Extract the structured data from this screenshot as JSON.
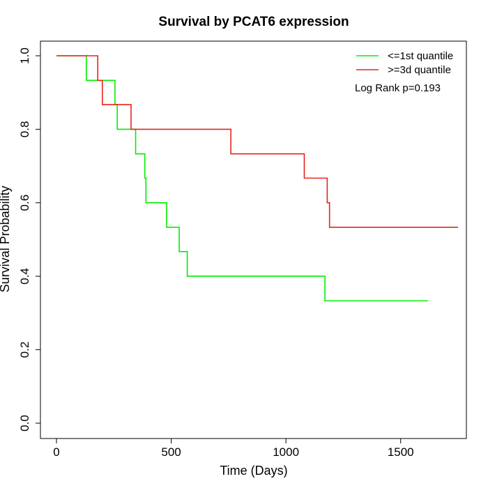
{
  "chart_data": {
    "type": "line",
    "title": "Survival by PCAT6 expression",
    "xlabel": "Time (Days)",
    "ylabel": "Survival Probability",
    "xlim": [
      0,
      1800
    ],
    "ylim": [
      0,
      1.0
    ],
    "x_ticks": [
      0,
      500,
      1000,
      1500
    ],
    "x_tick_labels": [
      "0",
      "500",
      "1000",
      "1500"
    ],
    "y_ticks": [
      0.0,
      0.2,
      0.4,
      0.6,
      0.8,
      1.0
    ],
    "y_tick_labels": [
      "0.0",
      "0.2",
      "0.4",
      "0.6",
      "0.8",
      "1.0"
    ],
    "grid": false,
    "legend_position": "top-right",
    "series": [
      {
        "name": "<=1st quantile",
        "color": "#00ee00",
        "step": true,
        "x": [
          0,
          130,
          255,
          265,
          345,
          385,
          390,
          480,
          535,
          570,
          1170,
          1620
        ],
        "y": [
          1.0,
          0.933,
          0.867,
          0.8,
          0.733,
          0.667,
          0.6,
          0.533,
          0.467,
          0.4,
          0.333,
          0.333
        ]
      },
      {
        "name": ">=3d quantile",
        "color": "#e8231c",
        "step": true,
        "x": [
          0,
          180,
          200,
          325,
          760,
          1080,
          1180,
          1190,
          1750
        ],
        "y": [
          1.0,
          0.933,
          0.867,
          0.8,
          0.733,
          0.667,
          0.6,
          0.533,
          0.533
        ]
      }
    ],
    "annotation": "Log Rank p=0.193"
  }
}
